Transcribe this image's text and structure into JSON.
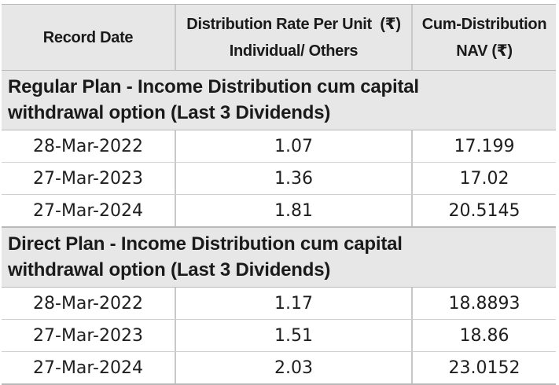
{
  "header": {
    "col1": "Record Date",
    "col2_line1": "Distribution Rate Per Unit  (₹)",
    "col2_line2": "Individual/ Others",
    "col3_line1": "Cum-Distribution",
    "col3_line2": "NAV (₹)"
  },
  "sections": [
    {
      "title_line1": "Regular Plan - Income Distribution cum capital",
      "title_line2": "withdrawal option (Last 3 Dividends)",
      "rows": [
        {
          "date": "28-Mar-2022",
          "rate": "1.07",
          "nav": "17.199"
        },
        {
          "date": "27-Mar-2023",
          "rate": "1.36",
          "nav": "17.02"
        },
        {
          "date": "27-Mar-2024",
          "rate": "1.81",
          "nav": "20.5145"
        }
      ]
    },
    {
      "title_line1": "Direct Plan - Income Distribution cum capital",
      "title_line2": "withdrawal option (Last 3 Dividends)",
      "rows": [
        {
          "date": "28-Mar-2022",
          "rate": "1.17",
          "nav": "18.8893"
        },
        {
          "date": "27-Mar-2023",
          "rate": "1.51",
          "nav": "18.86"
        },
        {
          "date": "27-Mar-2024",
          "rate": "2.03",
          "nav": "23.0152"
        }
      ]
    }
  ]
}
